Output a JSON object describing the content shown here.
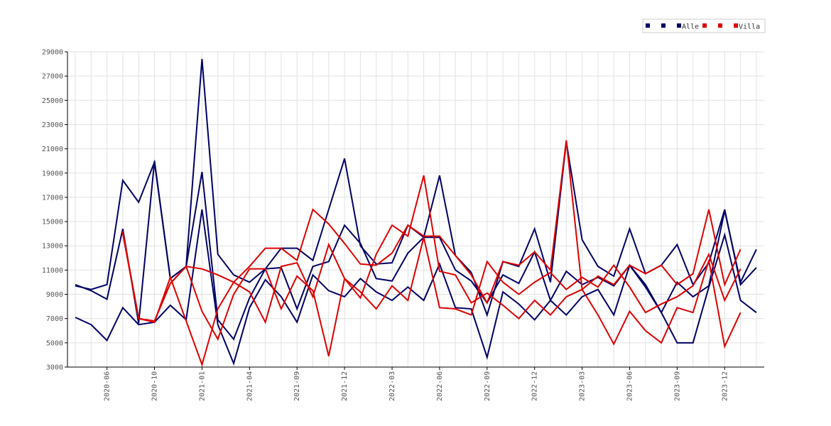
{
  "chart_data": {
    "type": "line",
    "categories": [
      null,
      null,
      "2020-06",
      null,
      null,
      "2020-10",
      null,
      null,
      "2021-01",
      null,
      null,
      "2021-04",
      null,
      null,
      "2021-09",
      null,
      null,
      "2021-12",
      null,
      null,
      "2022-03",
      null,
      null,
      "2022-06",
      null,
      null,
      "2022-09",
      null,
      null,
      "2022-12",
      null,
      null,
      "2023-03",
      null,
      null,
      "2023-06",
      null,
      null,
      "2023-09",
      null,
      null,
      "2023-12",
      null,
      null
    ],
    "ylim": [
      3000,
      29000
    ],
    "yticks": [
      3000,
      5000,
      7000,
      9000,
      11000,
      13000,
      15000,
      17000,
      19000,
      21000,
      23000,
      25000,
      27000,
      29000
    ],
    "grid": true,
    "legend": "top-right",
    "series": [
      {
        "name": null,
        "color": "#000066",
        "values": [
          9700,
          9400,
          9800,
          18400,
          16600,
          19900,
          10300,
          11300,
          28400,
          12300,
          10600,
          10000,
          11100,
          12800,
          12800,
          11800,
          16000,
          20200,
          13000,
          11500,
          11600,
          14700,
          13700,
          18800,
          12200,
          10800,
          7300,
          11700,
          11300,
          14400,
          10000,
          21600,
          13500,
          11300,
          10500,
          14400,
          10700,
          11400,
          13100,
          9800,
          11600,
          16000,
          9800,
          11200
        ]
      },
      {
        "name": null,
        "color": "#000066",
        "values": [
          9800,
          9300,
          8600,
          14400,
          6600,
          20000,
          10300,
          11300,
          19100,
          6900,
          5300,
          8700,
          11100,
          11200,
          7800,
          11300,
          11700,
          14700,
          13200,
          10300,
          10100,
          12400,
          13700,
          13700,
          11000,
          10100,
          8300,
          10600,
          9900,
          12500,
          8500,
          10900,
          9800,
          10400,
          9700,
          11400,
          9800,
          7500,
          10000,
          8800,
          9700,
          15900,
          10000,
          12700
        ]
      },
      {
        "name": "Alle",
        "color": "#000066",
        "values": [
          7100,
          6500,
          5200,
          7900,
          6500,
          6700,
          8100,
          6900,
          16000,
          6500,
          3300,
          7900,
          10200,
          8800,
          6700,
          10600,
          9300,
          8800,
          10300,
          9200,
          8500,
          9600,
          8500,
          11500,
          7900,
          7800,
          3800,
          9200,
          8200,
          6900,
          8500,
          7300,
          8800,
          9400,
          7300,
          11400,
          9600,
          7500,
          5000,
          5000,
          9600,
          13900,
          8500,
          7500
        ]
      },
      {
        "name": null,
        "color": "#dd0000",
        "values": [
          null,
          null,
          null,
          14200,
          7000,
          6800,
          9900,
          11300,
          11100,
          10600,
          10000,
          11300,
          12800,
          12800,
          11800,
          16000,
          14800,
          13200,
          11500,
          11400,
          12400,
          14700,
          13800,
          13800,
          12200,
          10600,
          8300,
          11700,
          11400,
          12500,
          11000,
          21700,
          9400,
          10500,
          9800,
          11400,
          10700,
          11400,
          9800,
          10700,
          16000,
          9800,
          12700,
          null
        ]
      },
      {
        "name": null,
        "color": "#dd0000",
        "values": [
          null,
          null,
          null,
          14000,
          7000,
          6800,
          9900,
          11300,
          7600,
          5300,
          9000,
          11100,
          11100,
          7800,
          10500,
          9300,
          3900,
          10300,
          9200,
          7800,
          9700,
          8500,
          13700,
          7900,
          7800,
          7300,
          11700,
          10000,
          9000,
          10000,
          10800,
          9400,
          10400,
          9600,
          11400,
          9600,
          7500,
          8200,
          8800,
          9700,
          12300,
          8500,
          11100,
          null
        ]
      },
      {
        "name": "Villa",
        "color": "#dd0000",
        "values": [
          null,
          null,
          null,
          14100,
          7000,
          6700,
          10400,
          6800,
          3200,
          7800,
          10000,
          9200,
          6700,
          11300,
          11600,
          8800,
          13100,
          10300,
          8700,
          12300,
          14700,
          13800,
          18800,
          10900,
          10600,
          8300,
          9100,
          8100,
          7000,
          8500,
          7300,
          8800,
          9400,
          7300,
          4900,
          7600,
          6000,
          5000,
          7900,
          7500,
          11800,
          4700,
          7500,
          null
        ]
      }
    ]
  }
}
